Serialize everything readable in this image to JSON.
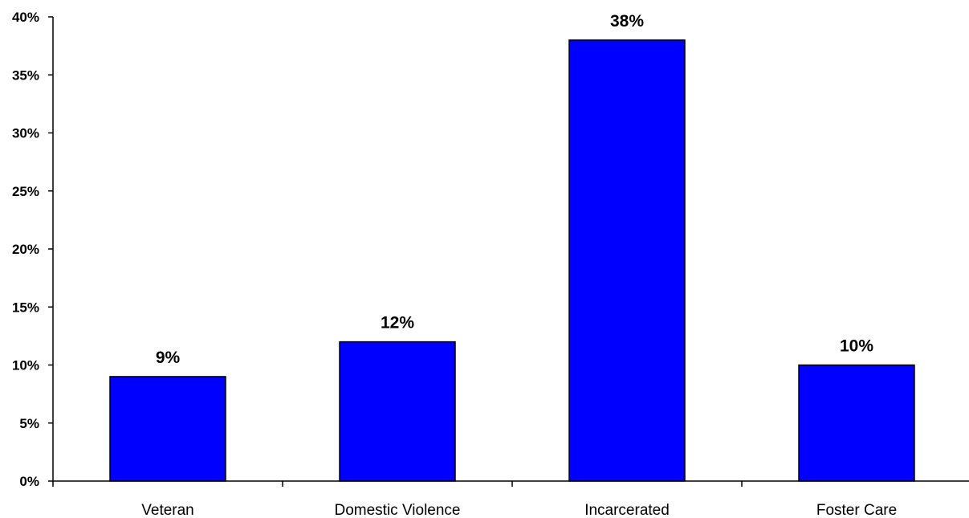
{
  "chart_data": {
    "type": "bar",
    "categories": [
      "Veteran",
      "Domestic Violence",
      "Incarcerated",
      "Foster Care"
    ],
    "values": [
      9,
      12,
      38,
      10
    ],
    "data_labels": [
      "9%",
      "12%",
      "38%",
      "10%"
    ],
    "yticks": [
      "0%",
      "5%",
      "10%",
      "15%",
      "20%",
      "25%",
      "30%",
      "35%",
      "40%"
    ],
    "ytick_values": [
      0,
      5,
      10,
      15,
      20,
      25,
      30,
      35,
      40
    ],
    "ylim": [
      0,
      40
    ],
    "grid": false,
    "legend": "none",
    "bar_color": "#0000ff"
  }
}
